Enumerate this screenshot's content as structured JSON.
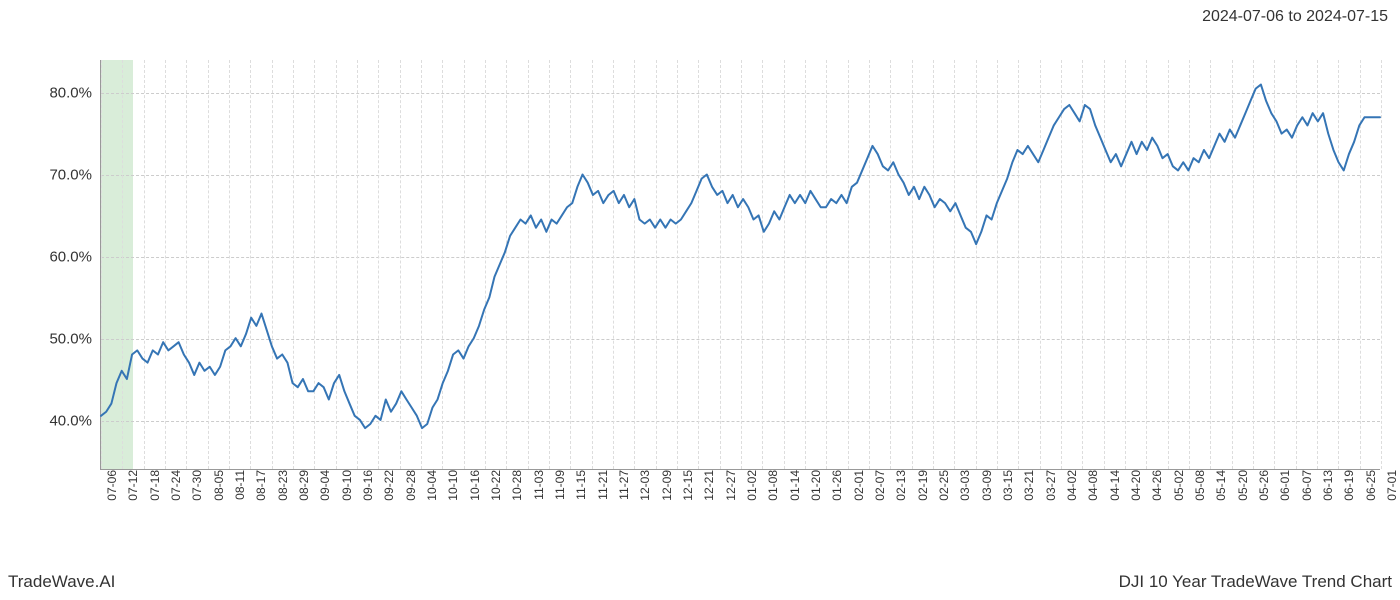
{
  "date_range": "2024-07-06 to 2024-07-15",
  "watermark_left": "TradeWave.AI",
  "watermark_right": "DJI 10 Year TradeWave Trend Chart",
  "chart": {
    "type": "line",
    "background_color": "#ffffff",
    "line_color": "#3575b5",
    "line_width": 2.0,
    "grid_color": "#cccccc",
    "minor_grid_color": "#dddddd",
    "axis_color": "#999999",
    "highlight_fill": "rgba(180,220,180,0.5)",
    "ylim": [
      34,
      84
    ],
    "yticks": [
      40,
      50,
      60,
      70,
      80
    ],
    "ytick_labels": [
      "40.0%",
      "50.0%",
      "60.0%",
      "70.0%",
      "80.0%"
    ],
    "ytick_fontsize": 15,
    "xtick_labels": [
      "07-06",
      "07-12",
      "07-18",
      "07-24",
      "07-30",
      "08-05",
      "08-11",
      "08-17",
      "08-23",
      "08-29",
      "09-04",
      "09-10",
      "09-16",
      "09-22",
      "09-28",
      "10-04",
      "10-10",
      "10-16",
      "10-22",
      "10-28",
      "11-03",
      "11-09",
      "11-15",
      "11-21",
      "11-27",
      "12-03",
      "12-09",
      "12-15",
      "12-21",
      "12-27",
      "01-02",
      "01-08",
      "01-14",
      "01-20",
      "01-26",
      "02-01",
      "02-07",
      "02-13",
      "02-19",
      "02-25",
      "03-03",
      "03-09",
      "03-15",
      "03-21",
      "03-27",
      "04-02",
      "04-08",
      "04-14",
      "04-20",
      "04-26",
      "05-02",
      "05-08",
      "05-14",
      "05-20",
      "05-26",
      "06-01",
      "06-07",
      "06-13",
      "06-19",
      "06-25",
      "07-01"
    ],
    "xtick_fontsize": 12,
    "highlight_band": {
      "start_index": 0,
      "end_index": 1.5
    },
    "series": [
      40.5,
      41.0,
      42.0,
      44.5,
      46.0,
      45.0,
      48.0,
      48.5,
      47.5,
      47.0,
      48.5,
      48.0,
      49.5,
      48.5,
      49.0,
      49.5,
      48.0,
      47.0,
      45.5,
      47.0,
      46.0,
      46.5,
      45.5,
      46.5,
      48.5,
      49.0,
      50.0,
      49.0,
      50.5,
      52.5,
      51.5,
      53.0,
      51.0,
      49.0,
      47.5,
      48.0,
      47.0,
      44.5,
      44.0,
      45.0,
      43.5,
      43.5,
      44.5,
      44.0,
      42.5,
      44.5,
      45.5,
      43.5,
      42.0,
      40.5,
      40.0,
      39.0,
      39.5,
      40.5,
      40.0,
      42.5,
      41.0,
      42.0,
      43.5,
      42.5,
      41.5,
      40.5,
      39.0,
      39.5,
      41.5,
      42.5,
      44.5,
      46.0,
      48.0,
      48.5,
      47.5,
      49.0,
      50.0,
      51.5,
      53.5,
      55.0,
      57.5,
      59.0,
      60.5,
      62.5,
      63.5,
      64.5,
      64.0,
      65.0,
      63.5,
      64.5,
      63.0,
      64.5,
      64.0,
      65.0,
      66.0,
      66.5,
      68.5,
      70.0,
      69.0,
      67.5,
      68.0,
      66.5,
      67.5,
      68.0,
      66.5,
      67.5,
      66.0,
      67.0,
      64.5,
      64.0,
      64.5,
      63.5,
      64.5,
      63.5,
      64.5,
      64.0,
      64.5,
      65.5,
      66.5,
      68.0,
      69.5,
      70.0,
      68.5,
      67.5,
      68.0,
      66.5,
      67.5,
      66.0,
      67.0,
      66.0,
      64.5,
      65.0,
      63.0,
      64.0,
      65.5,
      64.5,
      66.0,
      67.5,
      66.5,
      67.5,
      66.5,
      68.0,
      67.0,
      66.0,
      66.0,
      67.0,
      66.5,
      67.5,
      66.5,
      68.5,
      69.0,
      70.5,
      72.0,
      73.5,
      72.5,
      71.0,
      70.5,
      71.5,
      70.0,
      69.0,
      67.5,
      68.5,
      67.0,
      68.5,
      67.5,
      66.0,
      67.0,
      66.5,
      65.5,
      66.5,
      65.0,
      63.5,
      63.0,
      61.5,
      63.0,
      65.0,
      64.5,
      66.5,
      68.0,
      69.5,
      71.5,
      73.0,
      72.5,
      73.5,
      72.5,
      71.5,
      73.0,
      74.5,
      76.0,
      77.0,
      78.0,
      78.5,
      77.5,
      76.5,
      78.5,
      78.0,
      76.0,
      74.5,
      73.0,
      71.5,
      72.5,
      71.0,
      72.5,
      74.0,
      72.5,
      74.0,
      73.0,
      74.5,
      73.5,
      72.0,
      72.5,
      71.0,
      70.5,
      71.5,
      70.5,
      72.0,
      71.5,
      73.0,
      72.0,
      73.5,
      75.0,
      74.0,
      75.5,
      74.5,
      76.0,
      77.5,
      79.0,
      80.5,
      81.0,
      79.0,
      77.5,
      76.5,
      75.0,
      75.5,
      74.5,
      76.0,
      77.0,
      76.0,
      77.5,
      76.5,
      77.5,
      75.0,
      73.0,
      71.5,
      70.5,
      72.5,
      74.0,
      76.0,
      77.0,
      77.0,
      77.0,
      77.0
    ]
  }
}
